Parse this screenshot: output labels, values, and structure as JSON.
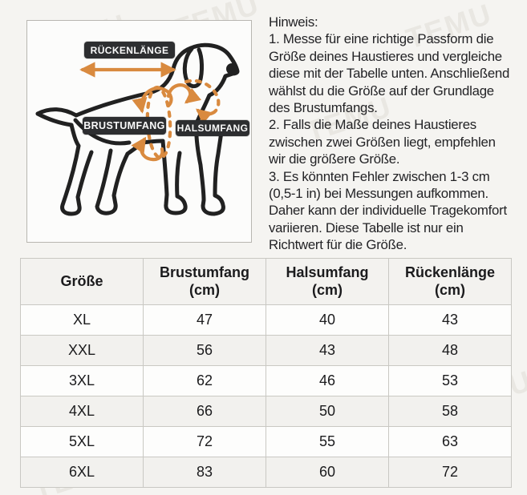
{
  "watermark": {
    "text": "TEMU"
  },
  "diagram": {
    "back_length_label": "RÜCKENLÄNGE",
    "chest_girth_label": "BRUSTUMFANG",
    "neck_girth_label": "HALSUMFANG"
  },
  "note": {
    "title": "Hinweis:",
    "items": [
      "1. Messe für eine richtige Passform die Größe deines Haustieres und vergleiche diese mit der Tabelle unten. Anschließend wählst du die Größe auf der Grundlage des Brustumfangs.",
      "2. Falls die Maße deines Haustieres zwischen zwei Größen liegt, empfehlen wir die größere Größe.",
      "3. Es könnten Fehler zwischen 1-3 cm (0,5-1 in) bei Messungen aufkommen. Daher kann der individuelle Tragekomfort variieren. Diese Tabelle ist nur ein Richtwert für die Größe."
    ]
  },
  "table": {
    "columns": [
      {
        "label": "Größe",
        "unit": ""
      },
      {
        "label": "Brustumfang",
        "unit": "(cm)"
      },
      {
        "label": "Halsumfang",
        "unit": "(cm)"
      },
      {
        "label": "Rückenlänge",
        "unit": "(cm)"
      }
    ],
    "rows": [
      [
        "XL",
        "47",
        "40",
        "43"
      ],
      [
        "XXL",
        "56",
        "43",
        "48"
      ],
      [
        "3XL",
        "62",
        "46",
        "53"
      ],
      [
        "4XL",
        "66",
        "50",
        "58"
      ],
      [
        "5XL",
        "72",
        "55",
        "63"
      ],
      [
        "6XL",
        "83",
        "60",
        "72"
      ]
    ]
  },
  "colors": {
    "accent_orange": "#d98a3f",
    "badge_dark": "#2d2e30",
    "page_background": "#f5f4f1",
    "row_alternate": "#f2f1ee"
  }
}
